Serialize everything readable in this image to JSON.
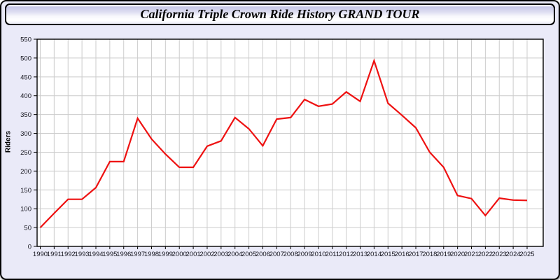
{
  "header": {
    "title": "California Triple Crown Ride History GRAND TOUR"
  },
  "chart_data": {
    "type": "line",
    "title": "California Triple Crown Ride History GRAND TOUR",
    "ylabel": "Riders",
    "xlabel": "",
    "x": [
      1990,
      1991,
      1992,
      1993,
      1994,
      1995,
      1996,
      1997,
      1998,
      1999,
      2000,
      2001,
      2002,
      2003,
      2004,
      2005,
      2006,
      2007,
      2008,
      2009,
      2010,
      2011,
      2012,
      2013,
      2014,
      2015,
      2016,
      2017,
      2018,
      2019,
      2020,
      2021,
      2022,
      2023,
      2024,
      2025
    ],
    "series": [
      {
        "name": "Riders",
        "values": [
          50,
          88,
          125,
          125,
          156,
          225,
          225,
          340,
          285,
          245,
          210,
          210,
          266,
          280,
          342,
          312,
          267,
          338,
          342,
          390,
          372,
          378,
          410,
          385,
          493,
          380,
          348,
          315,
          250,
          210,
          135,
          127,
          82,
          128,
          123,
          122
        ]
      }
    ],
    "ylim": [
      0,
      550
    ],
    "ytick_step": 50,
    "grid": true,
    "legend_position": "none",
    "line_color": "#EE1111",
    "grid_color": "#CCCCCC",
    "plot_bg": "#FFFFFF",
    "axis_color": "#000000",
    "tick_label_color": "#16161F"
  }
}
